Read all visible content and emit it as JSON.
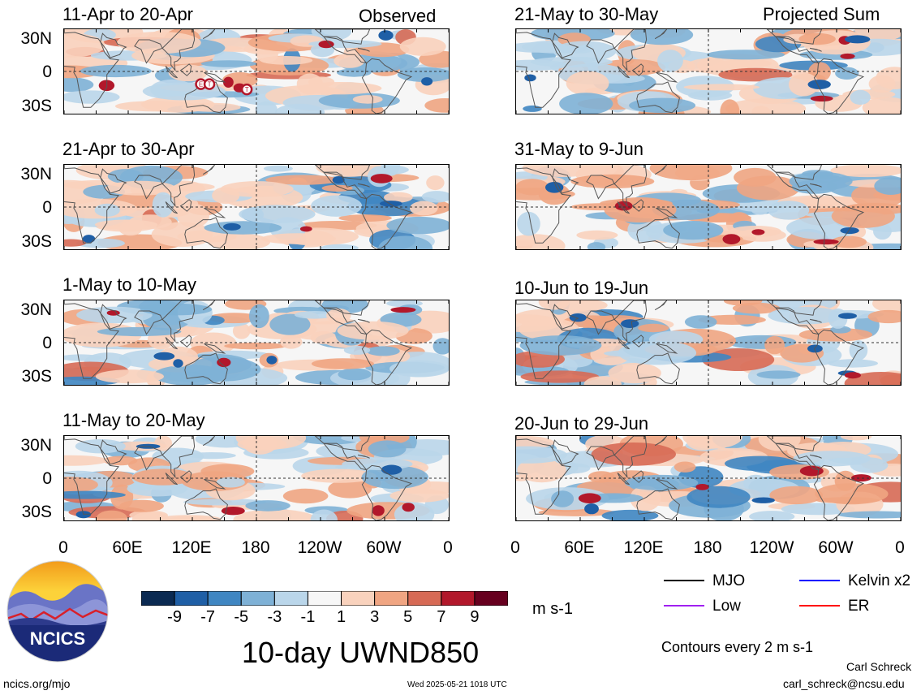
{
  "variable_title": "10-day UWND850",
  "units": "m s-1",
  "contours_note": "Contours every 2 m s-1",
  "logo_text": "NCICS",
  "footer": {
    "left": "ncics.org/mjo",
    "center": "Wed 2025-05-21 1018 UTC",
    "author": "Carl Schreck",
    "email": "carl_schreck@ncsu.edu"
  },
  "column_labels": {
    "observed": "Observed",
    "projected": "Projected Sum"
  },
  "y_ticks": [
    "30N",
    "0",
    "30S"
  ],
  "x_ticks": [
    "0",
    "60E",
    "120E",
    "180",
    "120W",
    "60W",
    "0"
  ],
  "colorbar": {
    "labels": [
      "-9",
      "-7",
      "-5",
      "-3",
      "-1",
      "1",
      "3",
      "5",
      "7",
      "9"
    ],
    "colors": [
      "#0b2a52",
      "#1f5fa6",
      "#3f86c2",
      "#7eb1d6",
      "#bad6ea",
      "#f7f7f7",
      "#f9d2bd",
      "#f0a582",
      "#d76a55",
      "#b2182b",
      "#67001f"
    ]
  },
  "legend": [
    {
      "label": "MJO",
      "color": "#000000"
    },
    {
      "label": "Kelvin x2",
      "color": "#0000ff"
    },
    {
      "label": "Low",
      "color": "#a020f0"
    },
    {
      "label": "ER",
      "color": "#ff0000"
    }
  ],
  "panels": {
    "observed": [
      "11-Apr to 20-Apr",
      "21-Apr to 30-Apr",
      "1-May to 10-May",
      "11-May to 20-May"
    ],
    "projected": [
      "21-May to 30-May",
      "31-May to 9-Jun",
      "10-Jun to 19-Jun",
      "20-Jun to 29-Jun"
    ]
  },
  "storm_markers": [
    "E",
    "T",
    "T"
  ]
}
